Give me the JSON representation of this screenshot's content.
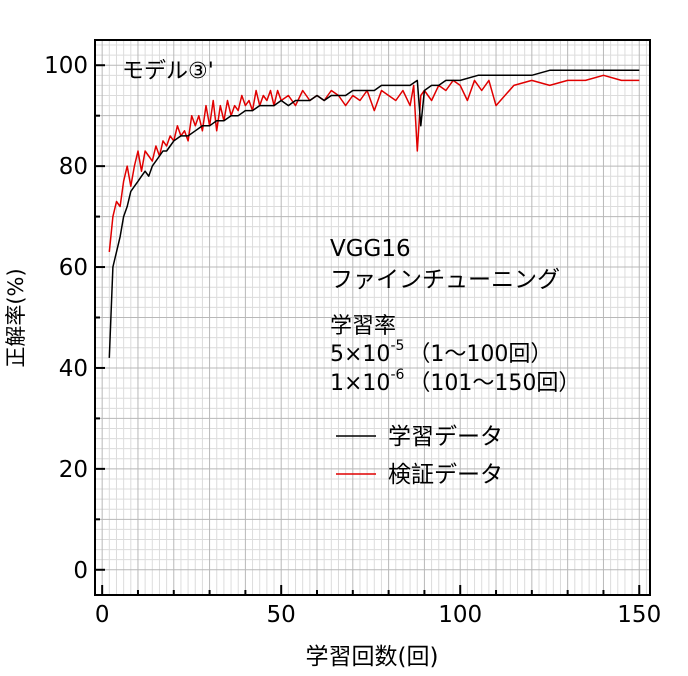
{
  "chart_data": {
    "type": "line",
    "title": "モデル③'",
    "xlabel": "学習回数(回)",
    "ylabel": "正解率(%)",
    "xlim": [
      -2,
      153
    ],
    "ylim": [
      -5,
      105
    ],
    "x_ticks": [
      0,
      50,
      100,
      150
    ],
    "y_ticks": [
      0,
      20,
      40,
      60,
      80,
      100
    ],
    "grid": true,
    "legend_position": "center-right",
    "annotation": {
      "model": "VGG16",
      "method": "ファインチューニング",
      "lr_heading": "学習率",
      "lr1_prefix": "5×10",
      "lr1_exp": "-5",
      "lr1_range": "（1〜100回）",
      "lr2_prefix": "1×10",
      "lr2_exp": "-6",
      "lr2_range": "（101〜150回）"
    },
    "series": [
      {
        "name": "学習データ",
        "color": "#000000",
        "x": [
          2,
          3,
          4,
          5,
          6,
          7,
          8,
          9,
          10,
          11,
          12,
          13,
          14,
          15,
          16,
          17,
          18,
          19,
          20,
          22,
          24,
          26,
          28,
          30,
          32,
          34,
          36,
          38,
          40,
          42,
          44,
          46,
          48,
          50,
          52,
          54,
          56,
          58,
          60,
          62,
          64,
          66,
          68,
          70,
          72,
          74,
          76,
          78,
          80,
          82,
          84,
          86,
          88,
          89,
          90,
          92,
          94,
          96,
          98,
          100,
          105,
          110,
          115,
          120,
          125,
          130,
          135,
          140,
          145,
          150
        ],
        "values": [
          42,
          60,
          63,
          66,
          70,
          72,
          75,
          76,
          77,
          78,
          79,
          78,
          80,
          81,
          82,
          83,
          83,
          84,
          85,
          86,
          86,
          87,
          88,
          88,
          89,
          89,
          90,
          90,
          91,
          91,
          92,
          92,
          92,
          93,
          92,
          93,
          93,
          93,
          94,
          93,
          94,
          94,
          94,
          95,
          95,
          95,
          95,
          96,
          96,
          96,
          96,
          96,
          97,
          88,
          95,
          96,
          96,
          97,
          97,
          97,
          98,
          98,
          98,
          98,
          99,
          99,
          99,
          99,
          99,
          99
        ]
      },
      {
        "name": "検証データ",
        "color": "#e00000",
        "x": [
          2,
          3,
          4,
          5,
          6,
          7,
          8,
          9,
          10,
          11,
          12,
          13,
          14,
          15,
          16,
          17,
          18,
          19,
          20,
          21,
          22,
          23,
          24,
          25,
          26,
          27,
          28,
          29,
          30,
          31,
          32,
          33,
          34,
          35,
          36,
          37,
          38,
          39,
          40,
          41,
          42,
          43,
          44,
          45,
          46,
          47,
          48,
          49,
          50,
          52,
          54,
          56,
          58,
          60,
          62,
          64,
          66,
          68,
          70,
          72,
          74,
          76,
          78,
          80,
          82,
          84,
          86,
          87,
          88,
          89,
          90,
          92,
          94,
          96,
          98,
          100,
          102,
          104,
          106,
          108,
          110,
          115,
          120,
          125,
          130,
          135,
          140,
          145,
          150
        ],
        "values": [
          63,
          70,
          73,
          72,
          77,
          80,
          76,
          80,
          83,
          79,
          83,
          82,
          81,
          84,
          82,
          85,
          84,
          86,
          85,
          88,
          86,
          87,
          85,
          90,
          88,
          90,
          87,
          92,
          88,
          93,
          87,
          92,
          89,
          93,
          90,
          92,
          91,
          94,
          92,
          93,
          91,
          95,
          92,
          94,
          93,
          95,
          92,
          95,
          93,
          94,
          92,
          95,
          93,
          94,
          93,
          95,
          94,
          92,
          94,
          93,
          95,
          91,
          95,
          94,
          93,
          95,
          92,
          96,
          83,
          94,
          95,
          93,
          96,
          95,
          97,
          96,
          93,
          97,
          95,
          97,
          92,
          96,
          97,
          96,
          97,
          97,
          98,
          97,
          97
        ]
      }
    ]
  }
}
